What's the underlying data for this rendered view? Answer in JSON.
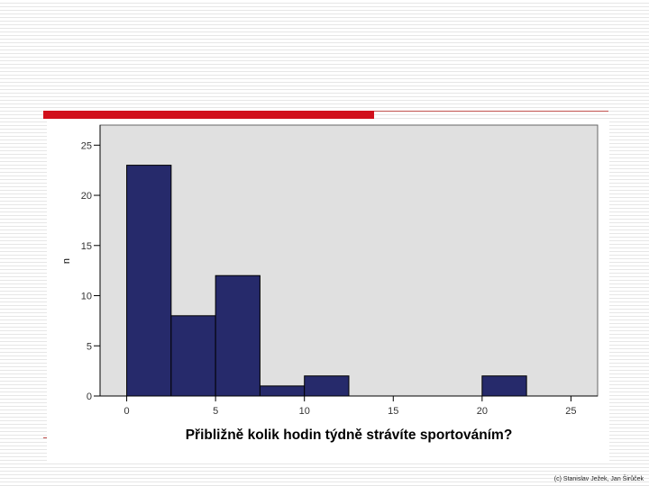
{
  "chart_data": {
    "type": "bar",
    "title": "",
    "xlabel": "Přibližně kolik hodin týdně strávíte sportováním?",
    "ylabel": "n",
    "xlim": [
      -1.5,
      26.5
    ],
    "ylim": [
      0,
      27
    ],
    "x_ticks": [
      0,
      5,
      10,
      15,
      20,
      25
    ],
    "y_ticks": [
      0,
      5,
      10,
      15,
      20,
      25
    ],
    "bin_width": 2.5,
    "bins": [
      {
        "start": 0,
        "end": 2.5,
        "count": 23
      },
      {
        "start": 2.5,
        "end": 5,
        "count": 8
      },
      {
        "start": 5,
        "end": 7.5,
        "count": 12
      },
      {
        "start": 7.5,
        "end": 10,
        "count": 1
      },
      {
        "start": 10,
        "end": 12.5,
        "count": 2
      },
      {
        "start": 20,
        "end": 22.5,
        "count": 2
      }
    ],
    "colors": {
      "bar_fill": "#262a6b",
      "bar_stroke": "#000000",
      "plot_background": "#e0e0e0"
    },
    "grid": false,
    "legend": "none"
  },
  "footer": {
    "credit": "(c) Stanislav Ježek, Jan Širůček"
  },
  "colors": {
    "accent_red": "#d10f1b"
  }
}
